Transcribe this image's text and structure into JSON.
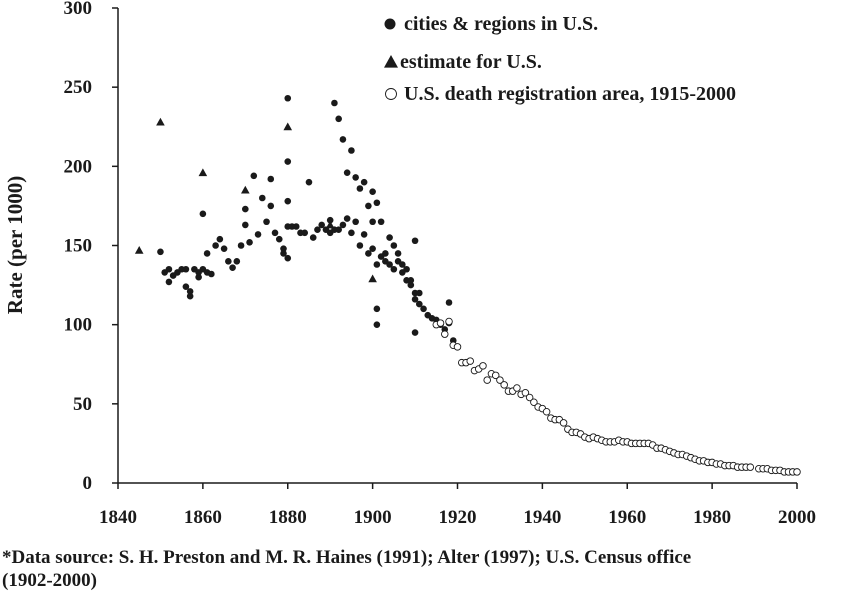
{
  "chart_data": {
    "type": "scatter",
    "title": "",
    "ylabel": "Rate (per 1000)",
    "xlabel": "",
    "xlim": [
      1840,
      2000
    ],
    "ylim": [
      0,
      300
    ],
    "xticks": [
      "1840",
      "1860",
      "1880",
      "1900",
      "1920",
      "1940",
      "1960",
      "1980",
      "2000"
    ],
    "yticks": [
      "0",
      "50",
      "100",
      "150",
      "200",
      "250",
      "300"
    ],
    "grid": false,
    "legend_position": "top-right",
    "series": [
      {
        "name": "cities & regions in U.S.",
        "marker": "filled-circle",
        "color": "#1a1a1a",
        "points": [
          [
            1850,
            146
          ],
          [
            1851,
            133
          ],
          [
            1852,
            127
          ],
          [
            1852,
            135
          ],
          [
            1853,
            131
          ],
          [
            1854,
            133
          ],
          [
            1855,
            135
          ],
          [
            1856,
            124
          ],
          [
            1856,
            135
          ],
          [
            1857,
            118
          ],
          [
            1857,
            121
          ],
          [
            1858,
            135
          ],
          [
            1859,
            130
          ],
          [
            1859,
            133
          ],
          [
            1860,
            170
          ],
          [
            1860,
            135
          ],
          [
            1861,
            145
          ],
          [
            1861,
            133
          ],
          [
            1862,
            132
          ],
          [
            1863,
            150
          ],
          [
            1864,
            154
          ],
          [
            1865,
            148
          ],
          [
            1866,
            140
          ],
          [
            1867,
            136
          ],
          [
            1868,
            140
          ],
          [
            1869,
            150
          ],
          [
            1870,
            173
          ],
          [
            1870,
            163
          ],
          [
            1871,
            152
          ],
          [
            1872,
            194
          ],
          [
            1873,
            157
          ],
          [
            1874,
            180
          ],
          [
            1875,
            165
          ],
          [
            1876,
            192
          ],
          [
            1876,
            175
          ],
          [
            1877,
            158
          ],
          [
            1878,
            154
          ],
          [
            1879,
            148
          ],
          [
            1879,
            145
          ],
          [
            1880,
            243
          ],
          [
            1880,
            203
          ],
          [
            1880,
            178
          ],
          [
            1880,
            162
          ],
          [
            1880,
            142
          ],
          [
            1881,
            162
          ],
          [
            1882,
            162
          ],
          [
            1883,
            158
          ],
          [
            1884,
            158
          ],
          [
            1885,
            190
          ],
          [
            1886,
            155
          ],
          [
            1887,
            160
          ],
          [
            1888,
            163
          ],
          [
            1889,
            160
          ],
          [
            1890,
            166
          ],
          [
            1890,
            158
          ],
          [
            1891,
            240
          ],
          [
            1891,
            160
          ],
          [
            1892,
            230
          ],
          [
            1892,
            160
          ],
          [
            1893,
            217
          ],
          [
            1893,
            163
          ],
          [
            1894,
            196
          ],
          [
            1894,
            167
          ],
          [
            1895,
            210
          ],
          [
            1895,
            158
          ],
          [
            1896,
            193
          ],
          [
            1896,
            165
          ],
          [
            1897,
            186
          ],
          [
            1897,
            150
          ],
          [
            1898,
            190
          ],
          [
            1898,
            157
          ],
          [
            1899,
            175
          ],
          [
            1899,
            145
          ],
          [
            1900,
            184
          ],
          [
            1900,
            165
          ],
          [
            1900,
            148
          ],
          [
            1901,
            110
          ],
          [
            1901,
            100
          ],
          [
            1901,
            138
          ],
          [
            1901,
            177
          ],
          [
            1902,
            143
          ],
          [
            1902,
            165
          ],
          [
            1903,
            140
          ],
          [
            1903,
            145
          ],
          [
            1904,
            155
          ],
          [
            1904,
            138
          ],
          [
            1905,
            150
          ],
          [
            1905,
            135
          ],
          [
            1906,
            145
          ],
          [
            1906,
            140
          ],
          [
            1907,
            138
          ],
          [
            1907,
            133
          ],
          [
            1908,
            135
          ],
          [
            1908,
            128
          ],
          [
            1909,
            128
          ],
          [
            1909,
            125
          ],
          [
            1910,
            153
          ],
          [
            1910,
            95
          ],
          [
            1910,
            120
          ],
          [
            1910,
            116
          ],
          [
            1911,
            120
          ],
          [
            1911,
            113
          ],
          [
            1912,
            110
          ],
          [
            1913,
            106
          ],
          [
            1914,
            104
          ],
          [
            1915,
            103
          ],
          [
            1916,
            100
          ],
          [
            1917,
            97
          ],
          [
            1918,
            114
          ],
          [
            1918,
            101
          ],
          [
            1919,
            90
          ]
        ]
      },
      {
        "name": "estimate for U.S.",
        "marker": "filled-triangle",
        "color": "#1a1a1a",
        "points": [
          [
            1845,
            147
          ],
          [
            1850,
            228
          ],
          [
            1860,
            196
          ],
          [
            1870,
            185
          ],
          [
            1880,
            225
          ],
          [
            1890,
            163
          ],
          [
            1900,
            129
          ]
        ]
      },
      {
        "name": "U.S. death registration area, 1915-2000",
        "marker": "open-circle",
        "color": "#1a1a1a",
        "points": [
          [
            1915,
            100
          ],
          [
            1916,
            101
          ],
          [
            1917,
            94
          ],
          [
            1918,
            102
          ],
          [
            1919,
            87
          ],
          [
            1920,
            86
          ],
          [
            1921,
            76
          ],
          [
            1922,
            76
          ],
          [
            1923,
            77
          ],
          [
            1924,
            71
          ],
          [
            1925,
            72
          ],
          [
            1926,
            74
          ],
          [
            1927,
            65
          ],
          [
            1928,
            69
          ],
          [
            1929,
            68
          ],
          [
            1930,
            65
          ],
          [
            1931,
            62
          ],
          [
            1932,
            58
          ],
          [
            1933,
            58
          ],
          [
            1934,
            60
          ],
          [
            1935,
            56
          ],
          [
            1936,
            57
          ],
          [
            1937,
            54
          ],
          [
            1938,
            51
          ],
          [
            1939,
            48
          ],
          [
            1940,
            47
          ],
          [
            1941,
            45
          ],
          [
            1942,
            41
          ],
          [
            1943,
            40
          ],
          [
            1944,
            40
          ],
          [
            1945,
            38
          ],
          [
            1946,
            34
          ],
          [
            1947,
            32
          ],
          [
            1948,
            32
          ],
          [
            1949,
            31
          ],
          [
            1950,
            29
          ],
          [
            1951,
            28
          ],
          [
            1952,
            29
          ],
          [
            1953,
            28
          ],
          [
            1954,
            27
          ],
          [
            1955,
            26
          ],
          [
            1956,
            26
          ],
          [
            1957,
            26
          ],
          [
            1958,
            27
          ],
          [
            1959,
            26
          ],
          [
            1960,
            26
          ],
          [
            1961,
            25
          ],
          [
            1962,
            25
          ],
          [
            1963,
            25
          ],
          [
            1964,
            25
          ],
          [
            1965,
            25
          ],
          [
            1966,
            24
          ],
          [
            1967,
            22
          ],
          [
            1968,
            22
          ],
          [
            1969,
            21
          ],
          [
            1970,
            20
          ],
          [
            1971,
            19
          ],
          [
            1972,
            18
          ],
          [
            1973,
            18
          ],
          [
            1974,
            17
          ],
          [
            1975,
            16
          ],
          [
            1976,
            15
          ],
          [
            1977,
            14
          ],
          [
            1978,
            14
          ],
          [
            1979,
            13
          ],
          [
            1980,
            13
          ],
          [
            1981,
            12
          ],
          [
            1982,
            12
          ],
          [
            1983,
            11
          ],
          [
            1984,
            11
          ],
          [
            1985,
            11
          ],
          [
            1986,
            10
          ],
          [
            1987,
            10
          ],
          [
            1988,
            10
          ],
          [
            1989,
            10
          ],
          [
            1991,
            9
          ],
          [
            1992,
            9
          ],
          [
            1993,
            9
          ],
          [
            1994,
            8
          ],
          [
            1995,
            8
          ],
          [
            1996,
            8
          ],
          [
            1997,
            7
          ],
          [
            1998,
            7
          ],
          [
            1999,
            7
          ],
          [
            2000,
            7
          ]
        ]
      }
    ]
  },
  "footnote": {
    "line1": "*Data source: S. H. Preston and M. R. Haines (1991); Alter (1997); U.S. Census office",
    "line2": "(1902-2000)"
  }
}
